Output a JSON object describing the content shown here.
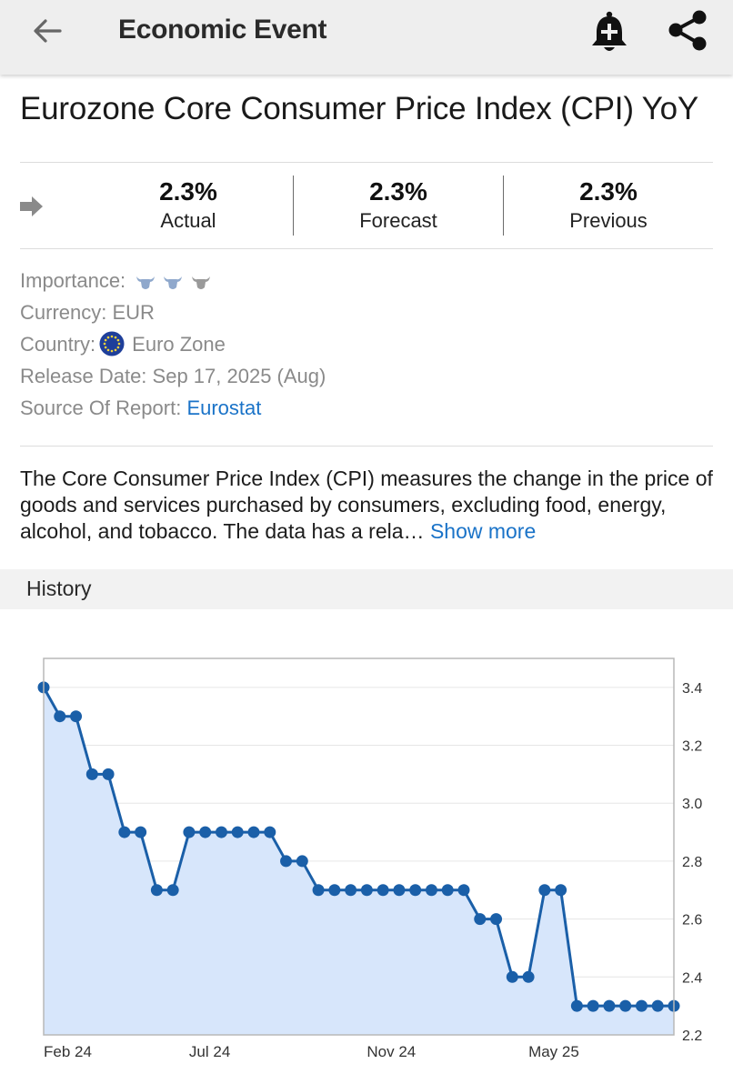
{
  "appbar": {
    "title": "Economic Event",
    "back_icon": "arrow-left-icon",
    "alert_icon": "bell-plus-icon",
    "share_icon": "share-icon"
  },
  "event": {
    "title": "Eurozone Core Consumer Price Index (CPI) YoY"
  },
  "values": {
    "actual": {
      "value": "2.3%",
      "label": "Actual"
    },
    "forecast": {
      "value": "2.3%",
      "label": "Forecast"
    },
    "previous": {
      "value": "2.3%",
      "label": "Previous"
    }
  },
  "meta": {
    "importance_label": "Importance:",
    "importance_level": 2,
    "importance_max": 3,
    "currency_label": "Currency:",
    "currency_value": "EUR",
    "country_label": "Country:",
    "country_value": "Euro Zone",
    "release_label": "Release Date:",
    "release_value": "Sep 17, 2025 (Aug)",
    "source_label": "Source Of Report:",
    "source_value": "Eurostat"
  },
  "description": {
    "text": "The Core Consumer Price Index (CPI) measures the change in the price of goods and services purchased by consumers, excluding food, energy, alcohol, and tobacco. The data has a rela…",
    "more_label": "Show more"
  },
  "history": {
    "title": "History"
  },
  "colors": {
    "accent": "#1a73c8",
    "line": "#1a5fa8",
    "area": "#d7e6fb"
  },
  "chart_data": {
    "type": "area",
    "x_tick_labels": [
      "Feb 24",
      "Jul 24",
      "Nov 24",
      "May 25"
    ],
    "y_ticks": [
      2.2,
      2.4,
      2.6,
      2.8,
      3.0,
      3.2,
      3.4
    ],
    "ylim": [
      2.2,
      3.5
    ],
    "grid": true,
    "y_axis_side": "right",
    "values": [
      3.4,
      3.3,
      3.3,
      3.1,
      3.1,
      2.9,
      2.9,
      2.7,
      2.7,
      2.9,
      2.9,
      2.9,
      2.9,
      2.9,
      2.9,
      2.8,
      2.8,
      2.7,
      2.7,
      2.7,
      2.7,
      2.7,
      2.7,
      2.7,
      2.7,
      2.7,
      2.7,
      2.6,
      2.6,
      2.4,
      2.4,
      2.7,
      2.7,
      2.3,
      2.3,
      2.3,
      2.3,
      2.3,
      2.3,
      2.3
    ]
  }
}
